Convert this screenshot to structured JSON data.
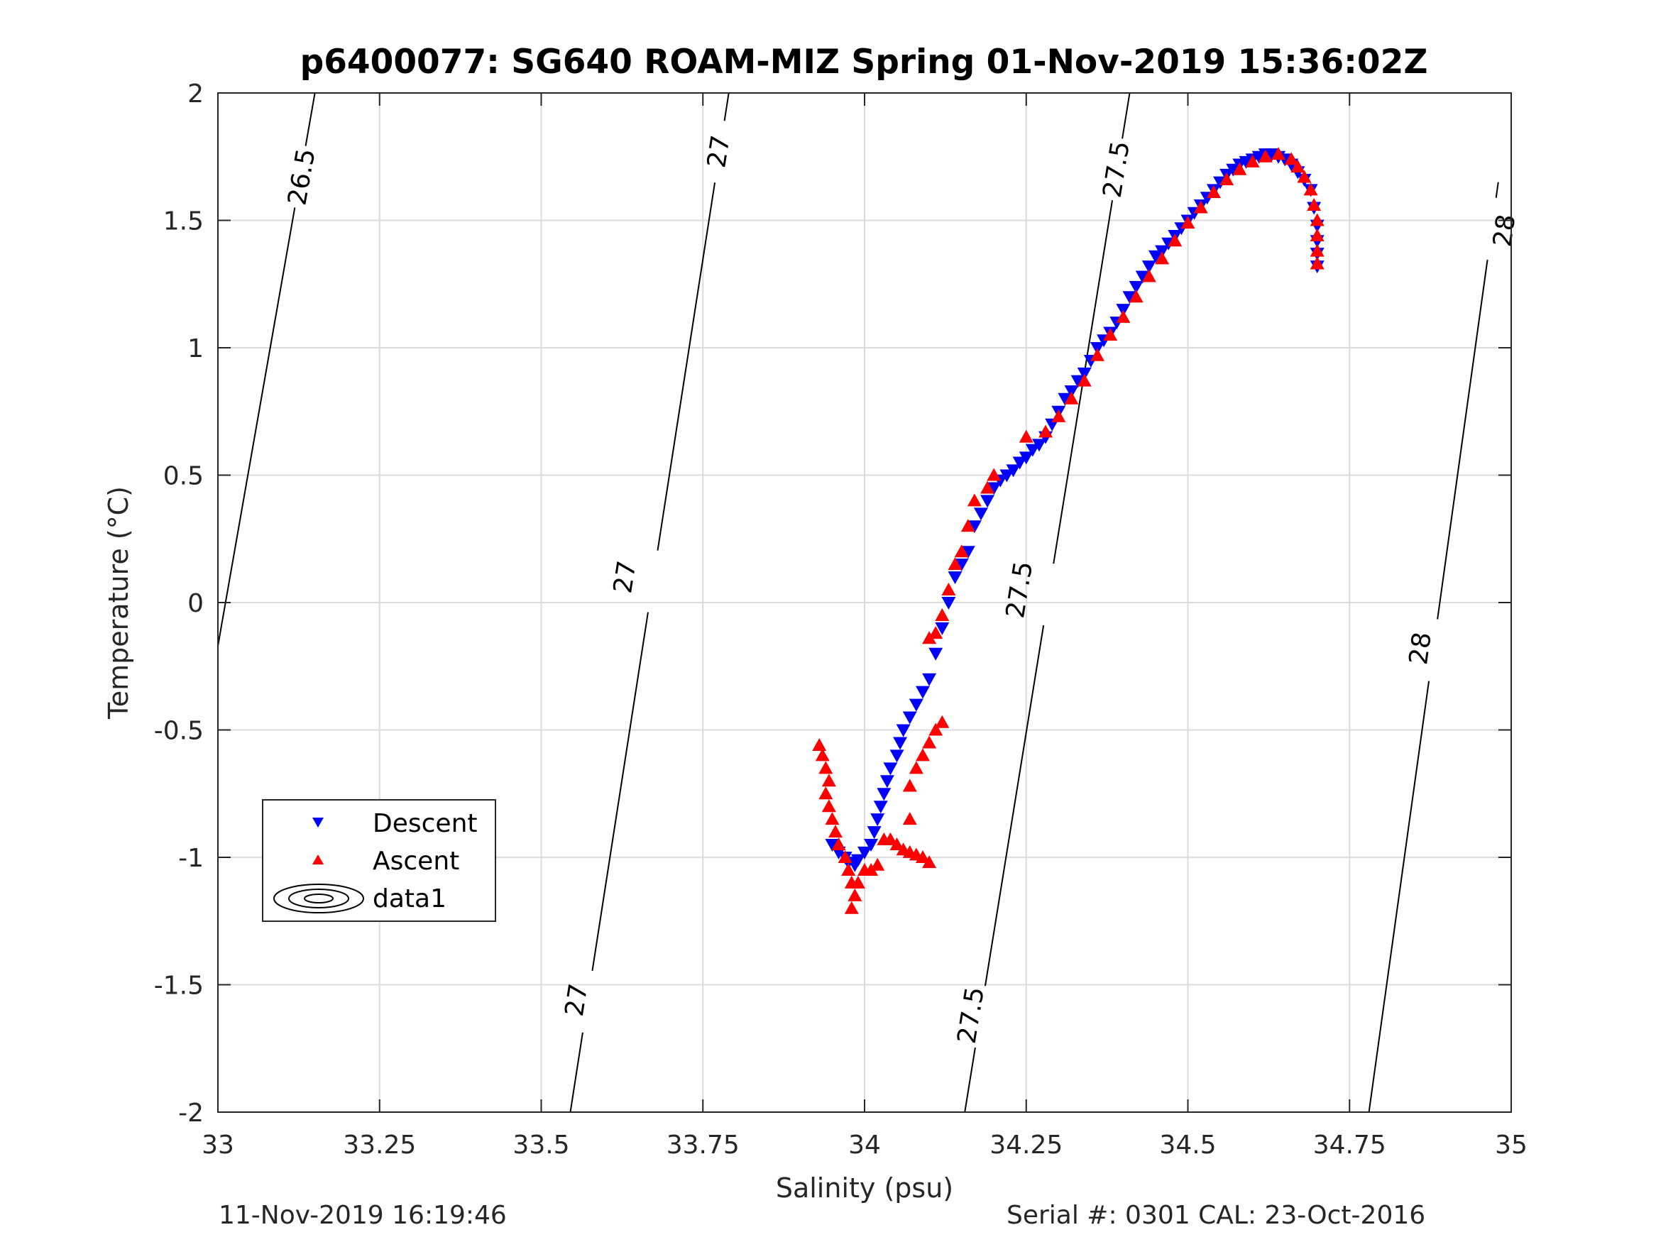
{
  "chart_data": {
    "type": "scatter",
    "title": "p6400077: SG640 ROAM-MIZ Spring 01-Nov-2019 15:36:02Z",
    "xlabel": "Salinity (psu)",
    "ylabel": "Temperature (°C)",
    "xlim": [
      33,
      35
    ],
    "ylim": [
      -2,
      2
    ],
    "x_ticks": [
      "33",
      "33.25",
      "33.5",
      "33.75",
      "34",
      "34.25",
      "34.5",
      "34.75",
      "35"
    ],
    "y_ticks": [
      "2",
      "1.5",
      "1",
      "0.5",
      "0",
      "-0.5",
      "-1",
      "-1.5",
      "-2"
    ],
    "grid": true,
    "legend_position": "lower-left",
    "legend": [
      "Descent",
      "Ascent",
      "data1"
    ],
    "colors": {
      "descent": "#0000ff",
      "ascent": "#ff0000",
      "contour": "#000000"
    },
    "series": [
      {
        "name": "Descent",
        "marker": "triangle-down",
        "points": [
          [
            33.95,
            -0.95
          ],
          [
            33.96,
            -0.98
          ],
          [
            33.97,
            -1.0
          ],
          [
            33.975,
            -1.02
          ],
          [
            33.985,
            -1.03
          ],
          [
            33.99,
            -1.01
          ],
          [
            34.0,
            -0.98
          ],
          [
            34.01,
            -0.95
          ],
          [
            34.015,
            -0.9
          ],
          [
            34.02,
            -0.85
          ],
          [
            34.025,
            -0.8
          ],
          [
            34.03,
            -0.75
          ],
          [
            34.035,
            -0.7
          ],
          [
            34.04,
            -0.65
          ],
          [
            34.05,
            -0.6
          ],
          [
            34.055,
            -0.55
          ],
          [
            34.06,
            -0.5
          ],
          [
            34.07,
            -0.45
          ],
          [
            34.08,
            -0.4
          ],
          [
            34.09,
            -0.35
          ],
          [
            34.1,
            -0.3
          ],
          [
            34.11,
            -0.2
          ],
          [
            34.12,
            -0.1
          ],
          [
            34.13,
            0.0
          ],
          [
            34.14,
            0.1
          ],
          [
            34.15,
            0.15
          ],
          [
            34.16,
            0.2
          ],
          [
            34.17,
            0.3
          ],
          [
            34.18,
            0.35
          ],
          [
            34.19,
            0.4
          ],
          [
            34.2,
            0.45
          ],
          [
            34.21,
            0.48
          ],
          [
            34.22,
            0.5
          ],
          [
            34.23,
            0.52
          ],
          [
            34.24,
            0.55
          ],
          [
            34.25,
            0.57
          ],
          [
            34.26,
            0.6
          ],
          [
            34.27,
            0.62
          ],
          [
            34.28,
            0.65
          ],
          [
            34.29,
            0.7
          ],
          [
            34.3,
            0.75
          ],
          [
            34.31,
            0.8
          ],
          [
            34.32,
            0.83
          ],
          [
            34.33,
            0.87
          ],
          [
            34.34,
            0.9
          ],
          [
            34.35,
            0.95
          ],
          [
            34.36,
            1.0
          ],
          [
            34.37,
            1.03
          ],
          [
            34.38,
            1.06
          ],
          [
            34.39,
            1.1
          ],
          [
            34.4,
            1.15
          ],
          [
            34.41,
            1.2
          ],
          [
            34.42,
            1.24
          ],
          [
            34.43,
            1.28
          ],
          [
            34.44,
            1.32
          ],
          [
            34.45,
            1.36
          ],
          [
            34.46,
            1.38
          ],
          [
            34.47,
            1.41
          ],
          [
            34.48,
            1.44
          ],
          [
            34.49,
            1.47
          ],
          [
            34.5,
            1.5
          ],
          [
            34.51,
            1.53
          ],
          [
            34.52,
            1.56
          ],
          [
            34.53,
            1.59
          ],
          [
            34.54,
            1.62
          ],
          [
            34.55,
            1.65
          ],
          [
            34.56,
            1.68
          ],
          [
            34.57,
            1.7
          ],
          [
            34.58,
            1.72
          ],
          [
            34.59,
            1.73
          ],
          [
            34.6,
            1.74
          ],
          [
            34.61,
            1.75
          ],
          [
            34.62,
            1.76
          ],
          [
            34.63,
            1.76
          ],
          [
            34.64,
            1.75
          ],
          [
            34.65,
            1.74
          ],
          [
            34.66,
            1.72
          ],
          [
            34.67,
            1.69
          ],
          [
            34.68,
            1.66
          ],
          [
            34.69,
            1.62
          ],
          [
            34.695,
            1.55
          ],
          [
            34.7,
            1.48
          ],
          [
            34.7,
            1.42
          ],
          [
            34.7,
            1.37
          ],
          [
            34.7,
            1.32
          ]
        ]
      },
      {
        "name": "Ascent",
        "marker": "triangle-up",
        "points": [
          [
            33.93,
            -0.56
          ],
          [
            33.935,
            -0.6
          ],
          [
            33.94,
            -0.65
          ],
          [
            33.945,
            -0.7
          ],
          [
            33.94,
            -0.75
          ],
          [
            33.945,
            -0.8
          ],
          [
            33.95,
            -0.85
          ],
          [
            33.955,
            -0.9
          ],
          [
            33.96,
            -0.95
          ],
          [
            33.97,
            -1.0
          ],
          [
            33.975,
            -1.05
          ],
          [
            33.98,
            -1.1
          ],
          [
            33.985,
            -1.15
          ],
          [
            33.98,
            -1.2
          ],
          [
            33.99,
            -1.1
          ],
          [
            34.0,
            -1.05
          ],
          [
            34.01,
            -1.05
          ],
          [
            34.02,
            -1.03
          ],
          [
            34.03,
            -0.93
          ],
          [
            34.04,
            -0.93
          ],
          [
            34.05,
            -0.95
          ],
          [
            34.06,
            -0.97
          ],
          [
            34.07,
            -0.98
          ],
          [
            34.08,
            -0.99
          ],
          [
            34.09,
            -1.0
          ],
          [
            34.1,
            -1.02
          ],
          [
            34.07,
            -0.85
          ],
          [
            34.07,
            -0.72
          ],
          [
            34.08,
            -0.65
          ],
          [
            34.09,
            -0.6
          ],
          [
            34.1,
            -0.55
          ],
          [
            34.11,
            -0.5
          ],
          [
            34.12,
            -0.47
          ],
          [
            34.1,
            -0.14
          ],
          [
            34.11,
            -0.12
          ],
          [
            34.12,
            -0.05
          ],
          [
            34.13,
            0.05
          ],
          [
            34.14,
            0.15
          ],
          [
            34.15,
            0.2
          ],
          [
            34.16,
            0.3
          ],
          [
            34.17,
            0.4
          ],
          [
            34.19,
            0.45
          ],
          [
            34.2,
            0.5
          ],
          [
            34.25,
            0.65
          ],
          [
            34.28,
            0.67
          ],
          [
            34.3,
            0.73
          ],
          [
            34.32,
            0.8
          ],
          [
            34.34,
            0.87
          ],
          [
            34.36,
            0.97
          ],
          [
            34.38,
            1.05
          ],
          [
            34.4,
            1.12
          ],
          [
            34.42,
            1.2
          ],
          [
            34.44,
            1.28
          ],
          [
            34.46,
            1.35
          ],
          [
            34.48,
            1.42
          ],
          [
            34.5,
            1.49
          ],
          [
            34.52,
            1.55
          ],
          [
            34.54,
            1.61
          ],
          [
            34.56,
            1.66
          ],
          [
            34.58,
            1.7
          ],
          [
            34.6,
            1.73
          ],
          [
            34.62,
            1.75
          ],
          [
            34.64,
            1.76
          ],
          [
            34.66,
            1.74
          ],
          [
            34.67,
            1.71
          ],
          [
            34.68,
            1.67
          ],
          [
            34.69,
            1.62
          ],
          [
            34.695,
            1.56
          ],
          [
            34.7,
            1.5
          ],
          [
            34.7,
            1.44
          ],
          [
            34.7,
            1.38
          ],
          [
            34.7,
            1.33
          ]
        ]
      }
    ],
    "contours": [
      {
        "label": "26.5",
        "points": [
          [
            33.0,
            -0.17
          ],
          [
            33.15,
            2.0
          ]
        ],
        "label_positions": [
          [
            33.13,
            1.67
          ]
        ]
      },
      {
        "label": "27",
        "points": [
          [
            33.545,
            -2.0
          ],
          [
            33.79,
            2.0
          ]
        ],
        "label_positions": [
          [
            33.555,
            -1.56
          ],
          [
            33.63,
            0.1
          ],
          [
            33.775,
            1.77
          ]
        ]
      },
      {
        "label": "27.5",
        "points": [
          [
            34.155,
            -2.0
          ],
          [
            34.41,
            2.0
          ]
        ],
        "label_positions": [
          [
            34.165,
            -1.62
          ],
          [
            34.24,
            0.05
          ],
          [
            34.39,
            1.7
          ]
        ]
      },
      {
        "label": "28",
        "points": [
          [
            34.78,
            -2.0
          ],
          [
            34.98,
            1.65
          ]
        ],
        "label_positions": [
          [
            34.86,
            -0.18
          ],
          [
            34.99,
            1.46
          ]
        ]
      }
    ]
  },
  "footer": {
    "left": "11-Nov-2019 16:19:46",
    "right": "Serial #: 0301  CAL: 23-Oct-2016"
  }
}
